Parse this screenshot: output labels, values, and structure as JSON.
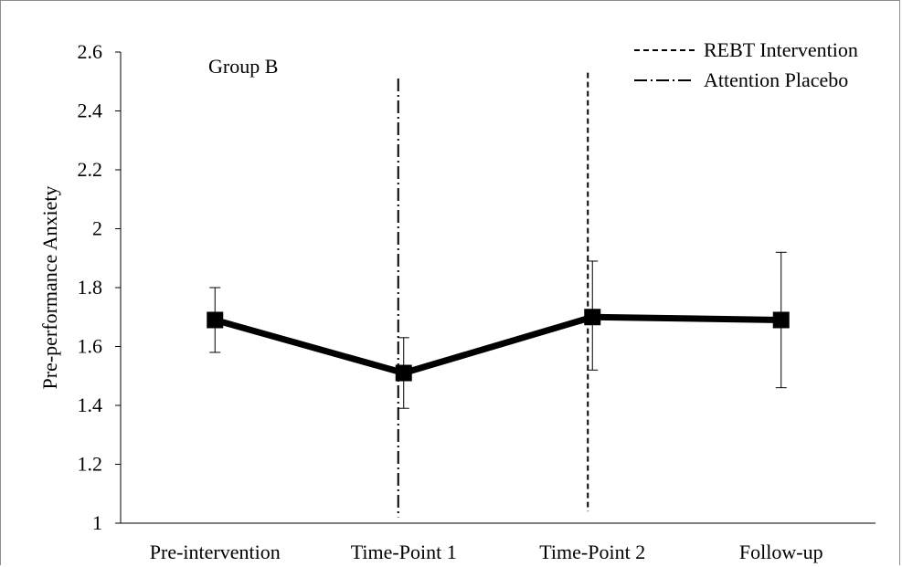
{
  "chart_data": {
    "type": "line",
    "title": "",
    "panel_label": "Group B",
    "xlabel": "",
    "ylabel": "Pre-performance Anxiety",
    "categories": [
      "Pre-intervention",
      "Time-Point 1",
      "Time-Point 2",
      "Follow-up"
    ],
    "series": [
      {
        "values": [
          1.69,
          1.51,
          1.7,
          1.69
        ],
        "error_low": [
          1.58,
          1.39,
          1.52,
          1.46
        ],
        "error_high": [
          1.8,
          1.63,
          1.89,
          1.92
        ],
        "color": "#000000",
        "marker": "square"
      }
    ],
    "ylim": [
      1,
      2.6
    ],
    "yticks": [
      "1",
      "1.2",
      "1.4",
      "1.6",
      "1.8",
      "2",
      "2.2",
      "2.4",
      "2.6"
    ],
    "grid": false,
    "vertical_lines": [
      {
        "name": "REBT Intervention",
        "style": "dashed",
        "between": [
          "Time-Point 2",
          "Time-Point 2"
        ],
        "y_top": 2.53,
        "y_bottom": 1.04
      },
      {
        "name": "Attention Placebo",
        "style": "dash-dot",
        "between": [
          "Time-Point 1",
          "Time-Point 1"
        ],
        "y_top": 2.51,
        "y_bottom": 1.02
      }
    ],
    "legend": {
      "position": "top-right",
      "entries": [
        {
          "label": "REBT Intervention",
          "style": "dashed"
        },
        {
          "label": "Attention Placebo",
          "style": "dash-dot"
        }
      ]
    }
  }
}
